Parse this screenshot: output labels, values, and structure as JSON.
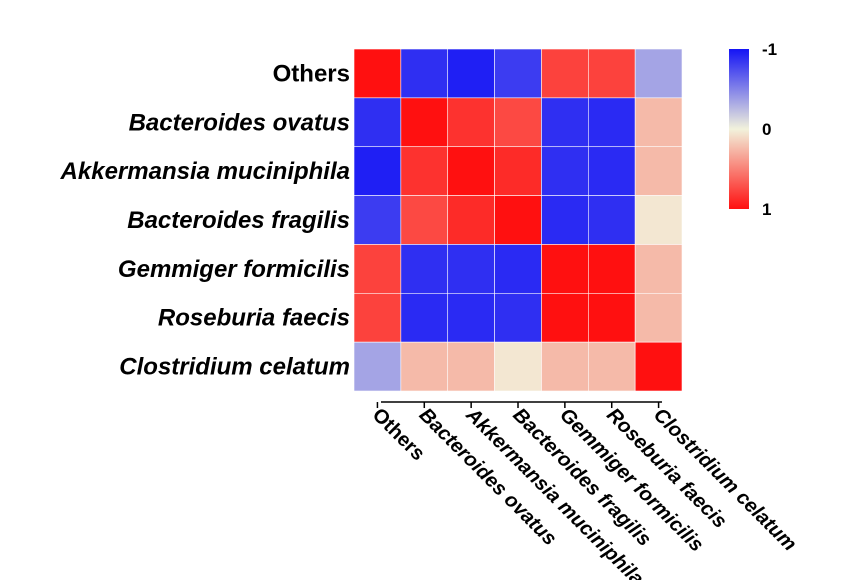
{
  "chart_data": {
    "type": "heatmap",
    "title": "",
    "rows": [
      "Others",
      "Bacteroides ovatus",
      "Akkermansia muciniphila",
      "Bacteroides fragilis",
      "Gemmiger formicilis",
      "Roseburia faecis",
      "Clostridium celatum"
    ],
    "columns": [
      "Others",
      "Bacteroides ovatus",
      "Akkermansia muciniphila",
      "Bacteroides fragilis",
      "Gemmiger formicilis",
      "Roseburia faecis",
      "Clostridium celatum"
    ],
    "values": [
      [
        1.0,
        -0.88,
        -0.95,
        -0.82,
        0.78,
        0.78,
        -0.35
      ],
      [
        -0.88,
        1.0,
        0.85,
        0.75,
        -0.88,
        -0.9,
        0.25
      ],
      [
        -0.95,
        0.85,
        1.0,
        0.88,
        -0.88,
        -0.9,
        0.25
      ],
      [
        -0.82,
        0.75,
        0.88,
        1.0,
        -0.9,
        -0.88,
        0.05
      ],
      [
        0.78,
        -0.88,
        -0.88,
        -0.9,
        1.0,
        1.0,
        0.25
      ],
      [
        0.78,
        -0.9,
        -0.9,
        -0.88,
        1.0,
        1.0,
        0.25
      ],
      [
        -0.35,
        0.25,
        0.25,
        0.05,
        0.25,
        0.25,
        1.0
      ]
    ],
    "italic_labels": [
      false,
      true,
      true,
      true,
      true,
      true,
      true
    ],
    "colorbar": {
      "ticks": [
        {
          "value": -1,
          "label": "-1"
        },
        {
          "value": 0,
          "label": "0"
        },
        {
          "value": 1,
          "label": "1"
        }
      ],
      "range": [
        -1,
        1
      ],
      "colors": {
        "negative": "#1414f5",
        "neutral": "#f2f2dc",
        "positive": "#ff1010"
      }
    }
  }
}
